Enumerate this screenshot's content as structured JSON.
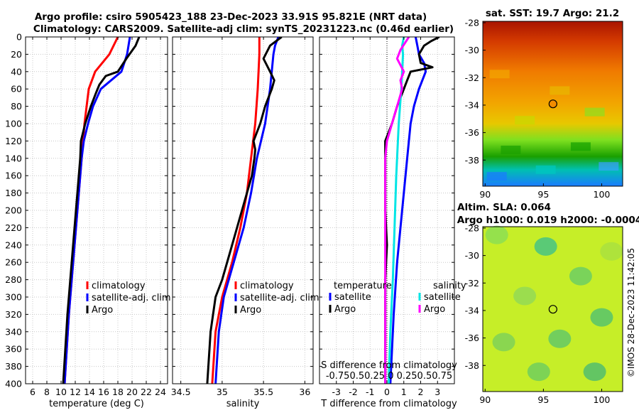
{
  "header": {
    "title_line1": "Argo profile: csiro 5905423_188 23-Dec-2023 33.91S 95.821E (NRT data)",
    "title_line2": "Climatology: CARS2009. Satellite-adj clim: synTS_20231223.nc (0.46d earlier)"
  },
  "chart_data": [
    {
      "id": "temperature",
      "type": "line",
      "xlabel": "temperature (deg C)",
      "ylabel": "",
      "xlim": [
        5,
        25
      ],
      "ylim": [
        400,
        0
      ],
      "xticks": [
        6,
        8,
        10,
        12,
        14,
        16,
        18,
        20,
        22,
        24
      ],
      "yticks": [
        0,
        20,
        40,
        60,
        80,
        100,
        120,
        140,
        160,
        180,
        200,
        220,
        240,
        260,
        280,
        300,
        320,
        340,
        360,
        380,
        400
      ],
      "series": [
        {
          "name": "climatology",
          "color": "#ff0000",
          "depth": [
            0,
            20,
            40,
            60,
            80,
            100,
            120,
            140,
            160,
            200,
            240,
            280,
            320,
            360,
            400
          ],
          "values": [
            18.0,
            16.8,
            14.8,
            13.9,
            13.6,
            13.3,
            13.1,
            12.9,
            12.7,
            12.3,
            11.9,
            11.5,
            11.1,
            10.8,
            10.5
          ]
        },
        {
          "name": "satellite-adj. clim",
          "color": "#0000ff",
          "depth": [
            0,
            20,
            40,
            60,
            80,
            100,
            120,
            140,
            160,
            200,
            240,
            280,
            320,
            360,
            400
          ],
          "values": [
            19.7,
            19.3,
            18.5,
            15.6,
            14.5,
            13.8,
            13.2,
            12.9,
            12.7,
            12.3,
            11.9,
            11.5,
            11.1,
            10.8,
            10.5
          ]
        },
        {
          "name": "Argo",
          "color": "#000000",
          "depth": [
            0,
            10,
            25,
            40,
            45,
            55,
            65,
            80,
            100,
            120,
            140,
            160,
            200,
            240,
            280,
            320,
            360,
            400
          ],
          "values": [
            21.0,
            20.5,
            19.2,
            18.0,
            16.3,
            15.4,
            14.9,
            14.2,
            13.4,
            12.8,
            12.7,
            12.5,
            12.1,
            11.7,
            11.3,
            10.9,
            10.6,
            10.3
          ]
        }
      ]
    },
    {
      "id": "salinity",
      "type": "line",
      "xlabel": "salinity",
      "ylabel": "",
      "xlim": [
        34.4,
        36.1
      ],
      "ylim": [
        400,
        0
      ],
      "xticks": [
        34.5,
        35,
        35.5,
        36
      ],
      "xtick_labels": [
        "34.5",
        "35",
        "35.5",
        "36"
      ],
      "series": [
        {
          "name": "climatology",
          "color": "#ff0000",
          "depth": [
            0,
            20,
            60,
            100,
            140,
            180,
            220,
            260,
            300,
            340,
            400
          ],
          "values": [
            35.45,
            35.45,
            35.43,
            35.4,
            35.35,
            35.3,
            35.22,
            35.12,
            35.0,
            34.92,
            34.88
          ]
        },
        {
          "name": "satellite-adj. clim",
          "color": "#0000ff",
          "depth": [
            0,
            10,
            20,
            60,
            100,
            140,
            180,
            220,
            260,
            300,
            340,
            400
          ],
          "values": [
            35.68,
            35.64,
            35.62,
            35.58,
            35.52,
            35.42,
            35.35,
            35.26,
            35.14,
            35.02,
            34.96,
            34.92
          ]
        },
        {
          "name": "Argo",
          "color": "#000000",
          "depth": [
            0,
            10,
            25,
            40,
            50,
            60,
            80,
            100,
            120,
            130,
            140,
            160,
            200,
            240,
            280,
            300,
            340,
            400
          ],
          "values": [
            35.72,
            35.58,
            35.5,
            35.58,
            35.63,
            35.6,
            35.52,
            35.46,
            35.38,
            35.4,
            35.39,
            35.36,
            35.24,
            35.12,
            35.0,
            34.92,
            34.86,
            34.82
          ]
        }
      ]
    },
    {
      "id": "difference",
      "type": "line",
      "xlabel": "T difference from climatology",
      "top_label": "S difference from climatology",
      "xlim": [
        -4,
        4
      ],
      "ylim": [
        400,
        0
      ],
      "xticks": [
        -3,
        -2,
        -1,
        0,
        1,
        2,
        3
      ],
      "xtick_labels": [
        "-3",
        "-2",
        "-1",
        "0",
        "1",
        "2",
        "3"
      ],
      "top_ticks": [
        -0.75,
        -0.5,
        -0.25,
        0,
        0.25,
        0.5,
        0.75
      ],
      "top_tick_text": "-0.750.50.25 0 0.250.50.75",
      "legend_temperature_title": "temperature",
      "legend_salinity_title": "salinity",
      "series": [
        {
          "name": "satellite",
          "group": "temperature",
          "color": "#0000ff",
          "depth": [
            0,
            10,
            20,
            30,
            40,
            60,
            80,
            100,
            140,
            200,
            260,
            320,
            400
          ],
          "values": [
            1.7,
            1.8,
            1.9,
            2.2,
            2.3,
            1.9,
            1.6,
            1.4,
            1.2,
            0.9,
            0.6,
            0.4,
            0.2
          ]
        },
        {
          "name": "Argo",
          "group": "temperature",
          "color": "#000000",
          "depth": [
            0,
            5,
            10,
            20,
            30,
            35,
            40,
            50,
            60,
            80,
            100,
            120,
            160,
            200,
            240,
            280,
            320,
            360,
            400
          ],
          "values": [
            3.1,
            2.6,
            2.2,
            1.9,
            2.0,
            2.7,
            1.4,
            1.2,
            1.0,
            0.6,
            0.3,
            -0.1,
            -0.1,
            -0.1,
            0.0,
            -0.1,
            -0.1,
            -0.1,
            -0.1
          ]
        },
        {
          "name": "satellite",
          "group": "salinity",
          "color": "#00e5e5",
          "depth": [
            0,
            10,
            20,
            40,
            60,
            100,
            160,
            220,
            280,
            340,
            400
          ],
          "values": [
            1.0,
            0.9,
            0.95,
            0.9,
            0.85,
            0.7,
            0.55,
            0.45,
            0.35,
            0.2,
            0.1
          ]
        },
        {
          "name": "Argo",
          "group": "salinity",
          "color": "#ff00ff",
          "depth": [
            0,
            15,
            25,
            40,
            50,
            60,
            80,
            100,
            120,
            140,
            160,
            200,
            240,
            280,
            320,
            360,
            400
          ],
          "values": [
            1.3,
            0.8,
            0.6,
            1.0,
            0.8,
            0.9,
            0.6,
            0.3,
            0.0,
            -0.1,
            -0.1,
            -0.1,
            -0.1,
            -0.1,
            -0.1,
            -0.1,
            -0.1
          ]
        }
      ]
    }
  ],
  "legend": {
    "items": [
      "climatology",
      "satellite-adj. clim",
      "Argo"
    ],
    "diff_items": [
      "satellite",
      "Argo"
    ]
  },
  "maps": {
    "sst": {
      "title": "sat. SST: 19.7 Argo: 21.2",
      "yticks": [
        -28,
        -30,
        -32,
        -34,
        -36,
        -38
      ],
      "xticks": [
        90,
        95,
        100
      ],
      "lon_range": [
        89.8,
        101.8
      ],
      "lat_range": [
        -27.9,
        -39.9
      ],
      "argo_lon": 95.82,
      "argo_lat": -33.91,
      "color_top": "#b01a00",
      "color_bottom": "#22b6ff"
    },
    "sla": {
      "title_line1": "Altim. SLA: 0.064",
      "title_line2": "Argo h1000: 0.019 h2000: -0.0004",
      "yticks": [
        -28,
        -30,
        -32,
        -34,
        -36,
        -38
      ],
      "xticks": [
        90,
        95,
        100
      ],
      "lon_range": [
        89.8,
        101.8
      ],
      "lat_range": [
        -27.9,
        -39.9
      ],
      "argo_lon": 95.82,
      "argo_lat": -33.91,
      "color_base": "#c6ee28"
    }
  },
  "footer": {
    "credit": "©IMOS 28-Dec-2023 11:42:05"
  }
}
